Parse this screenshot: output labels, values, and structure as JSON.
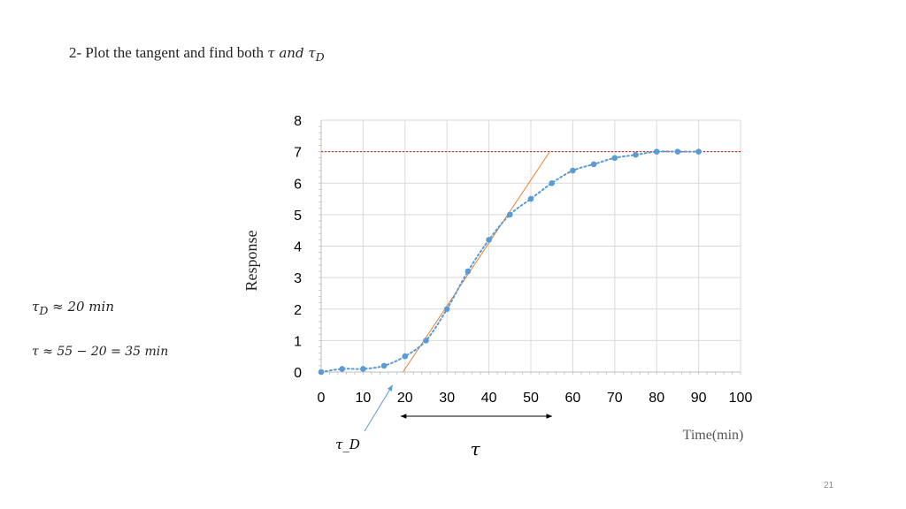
{
  "slide": {
    "heading": "2- Plot the tangent and find both",
    "heading_math": "τ  and  τ",
    "heading_math_sub": "D",
    "note_tau_d": "τ",
    "note_tau_d_sub": "D",
    "note_tau_d_rest": " ≈ 20 min",
    "note_tau": "τ ≈ 55 − 20 = 35 min",
    "slide_number": "21"
  },
  "annotations": {
    "tau_d_label": "τ_D",
    "tau_label": "τ"
  },
  "colors": {
    "series": "#5b9bd5",
    "tangent": "#ed7d31",
    "final_value_line": "#ff0000",
    "grid": "#d9d9d9",
    "annotation_arrow": "#5b9bd5",
    "tau_arrow": "#000000"
  },
  "chart_data": {
    "type": "scatter",
    "xlabel": "Time(min)",
    "ylabel": "Response",
    "xlim": [
      0,
      100
    ],
    "ylim": [
      0,
      8
    ],
    "x_ticks": [
      0,
      10,
      20,
      30,
      40,
      50,
      60,
      70,
      80,
      90,
      100
    ],
    "y_ticks": [
      0,
      1,
      2,
      3,
      4,
      5,
      6,
      7,
      8
    ],
    "grid": true,
    "series": [
      {
        "x": [
          0,
          5,
          10,
          15,
          20,
          25,
          30,
          35,
          40,
          45,
          50,
          55,
          60,
          65,
          70,
          75,
          80,
          85,
          90
        ],
        "y": [
          0,
          0.1,
          0.1,
          0.2,
          0.5,
          1.0,
          2.0,
          3.2,
          4.2,
          5.0,
          5.5,
          6.0,
          6.4,
          6.6,
          6.8,
          6.9,
          7.0,
          7.0,
          7.0
        ],
        "trendline": "dotted smooth"
      }
    ],
    "tangent_line": {
      "x": [
        19.5,
        54.5
      ],
      "y": [
        0,
        7
      ]
    },
    "final_value_line": {
      "y": 7
    },
    "tau_interval": {
      "x": [
        19,
        55
      ]
    },
    "tau_d_pointer": {
      "x": 17
    }
  }
}
